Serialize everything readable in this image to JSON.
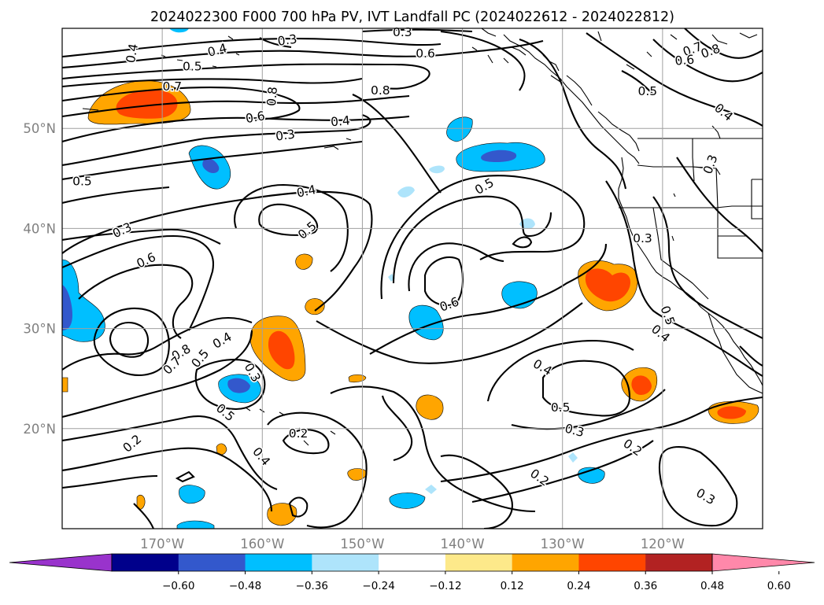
{
  "chart_data": {
    "type": "contour-map",
    "title": "2024022300 F000 700 hPa PV, IVT Landfall PC (2024022612 - 2024022812)",
    "map_extent": {
      "lon": [
        -180,
        -110
      ],
      "lat": [
        10,
        60
      ]
    },
    "grid": true,
    "x_ticks": [
      {
        "lon": -170,
        "label": "170°W"
      },
      {
        "lon": -160,
        "label": "160°W"
      },
      {
        "lon": -150,
        "label": "150°W"
      },
      {
        "lon": -140,
        "label": "140°W"
      },
      {
        "lon": -130,
        "label": "130°W"
      },
      {
        "lon": -120,
        "label": "120°W"
      }
    ],
    "y_ticks": [
      {
        "lat": 20,
        "label": "20°N"
      },
      {
        "lat": 30,
        "label": "30°N"
      },
      {
        "lat": 40,
        "label": "40°N"
      },
      {
        "lat": 50,
        "label": "50°N"
      }
    ],
    "colorbar": {
      "extend": "both",
      "colors": [
        "#9933cc",
        "#00008b",
        "#3358cc",
        "#00bfff",
        "#aee4fb",
        "#ffffff",
        "#fde98a",
        "#ffa500",
        "#ff4500",
        "#b22222",
        "#ff88aa"
      ],
      "tick_labels": [
        "−0.60",
        "−0.48",
        "−0.36",
        "−0.24",
        "−0.12",
        "0.12",
        "0.24",
        "0.36",
        "0.48",
        "0.60"
      ]
    },
    "contour_labels": [
      {
        "text": "0.4",
        "lon": -173,
        "lat": 57.5,
        "rot": -80
      },
      {
        "text": "0.5",
        "lon": -167,
        "lat": 56.2,
        "rot": 0
      },
      {
        "text": "0.4",
        "lon": -164.5,
        "lat": 57.8,
        "rot": -15
      },
      {
        "text": "0.3",
        "lon": -157.5,
        "lat": 58.8,
        "rot": -8
      },
      {
        "text": "0.3",
        "lon": -146,
        "lat": 59.6,
        "rot": 0
      },
      {
        "text": "0.6",
        "lon": -143.7,
        "lat": 57.5,
        "rot": 0
      },
      {
        "text": "0.7",
        "lon": -169,
        "lat": 54.2,
        "rot": 0
      },
      {
        "text": "0.8",
        "lon": -159,
        "lat": 53.2,
        "rot": -85
      },
      {
        "text": "0.8",
        "lon": -148.2,
        "lat": 53.8,
        "rot": 0
      },
      {
        "text": "0.6",
        "lon": -160.7,
        "lat": 51.1,
        "rot": -10
      },
      {
        "text": "0.4",
        "lon": -152.2,
        "lat": 50.7,
        "rot": -5
      },
      {
        "text": "0.3",
        "lon": -157.7,
        "lat": 49.3,
        "rot": -8
      },
      {
        "text": "0.5",
        "lon": -178,
        "lat": 44.7,
        "rot": 0
      },
      {
        "text": "0.4",
        "lon": -155.6,
        "lat": 43.7,
        "rot": -12
      },
      {
        "text": "0.5",
        "lon": -155.5,
        "lat": 39.8,
        "rot": -40
      },
      {
        "text": "0.3",
        "lon": -174,
        "lat": 39.8,
        "rot": -25
      },
      {
        "text": "0.6",
        "lon": -171.6,
        "lat": 36.8,
        "rot": -25
      },
      {
        "text": "0.5",
        "lon": -137.8,
        "lat": 44.2,
        "rot": -30
      },
      {
        "text": "0.6",
        "lon": -141.3,
        "lat": 32.4,
        "rot": -20
      },
      {
        "text": "0.3",
        "lon": -122,
        "lat": 39,
        "rot": 0
      },
      {
        "text": "0.3",
        "lon": -115.2,
        "lat": 46.4,
        "rot": -70
      },
      {
        "text": "0.7",
        "lon": -117,
        "lat": 57.9,
        "rot": -20
      },
      {
        "text": "0.8",
        "lon": -115.2,
        "lat": 57.7,
        "rot": -20
      },
      {
        "text": "0.6",
        "lon": -117.8,
        "lat": 56.8,
        "rot": -5
      },
      {
        "text": "0.5",
        "lon": -121.5,
        "lat": 53.7,
        "rot": 0
      },
      {
        "text": "0.4",
        "lon": -113.9,
        "lat": 51.6,
        "rot": 40
      },
      {
        "text": "0.5",
        "lon": -119.5,
        "lat": 31.3,
        "rot": 70
      },
      {
        "text": "0.4",
        "lon": -120.2,
        "lat": 29.5,
        "rot": 40
      },
      {
        "text": "0.4",
        "lon": -164,
        "lat": 28.8,
        "rot": -30
      },
      {
        "text": "0.5",
        "lon": -166.2,
        "lat": 27,
        "rot": -50
      },
      {
        "text": "0.8",
        "lon": -168.1,
        "lat": 27.6,
        "rot": -30
      },
      {
        "text": "0.7",
        "lon": -169,
        "lat": 26.3,
        "rot": -45
      },
      {
        "text": "0.3",
        "lon": -161,
        "lat": 25.6,
        "rot": 60
      },
      {
        "text": "0.5",
        "lon": -163.7,
        "lat": 21.6,
        "rot": 40
      },
      {
        "text": "0.4",
        "lon": -160.1,
        "lat": 17.2,
        "rot": 50
      },
      {
        "text": "0.2",
        "lon": -173,
        "lat": 18.5,
        "rot": -40
      },
      {
        "text": "0.2",
        "lon": -156.4,
        "lat": 19.5,
        "rot": 0
      },
      {
        "text": "0.4",
        "lon": -132,
        "lat": 26.1,
        "rot": 30
      },
      {
        "text": "0.5",
        "lon": -130.2,
        "lat": 22.1,
        "rot": 0
      },
      {
        "text": "0.3",
        "lon": -128.8,
        "lat": 19.8,
        "rot": 15
      },
      {
        "text": "0.2",
        "lon": -123,
        "lat": 18.1,
        "rot": 35
      },
      {
        "text": "0.2",
        "lon": -132.3,
        "lat": 15.1,
        "rot": 35
      },
      {
        "text": "0.3",
        "lon": -115.7,
        "lat": 13.2,
        "rot": 30
      }
    ]
  }
}
